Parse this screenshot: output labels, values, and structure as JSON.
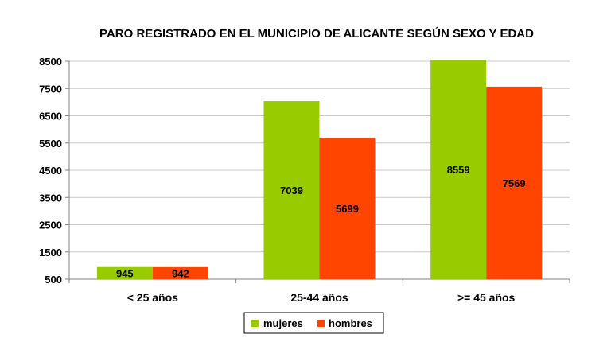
{
  "chart_data": {
    "type": "bar",
    "title": "PARO REGISTRADO EN EL MUNICIPIO DE ALICANTE SEGÚN SEXO Y EDAD",
    "xlabel": "",
    "ylabel": "",
    "categories": [
      "< 25 años",
      "25-44 años",
      ">= 45 años"
    ],
    "series": [
      {
        "name": "mujeres",
        "values": [
          945,
          7039,
          8559
        ],
        "color": "#99CC00"
      },
      {
        "name": "hombres",
        "values": [
          942,
          5699,
          7569
        ],
        "color": "#FF4500"
      }
    ],
    "yticks": [
      "500",
      "1500",
      "2500",
      "3500",
      "4500",
      "5500",
      "6500",
      "7500",
      "8500"
    ],
    "ylim": [
      500,
      8500
    ],
    "grid": true,
    "legend_position": "bottom"
  }
}
